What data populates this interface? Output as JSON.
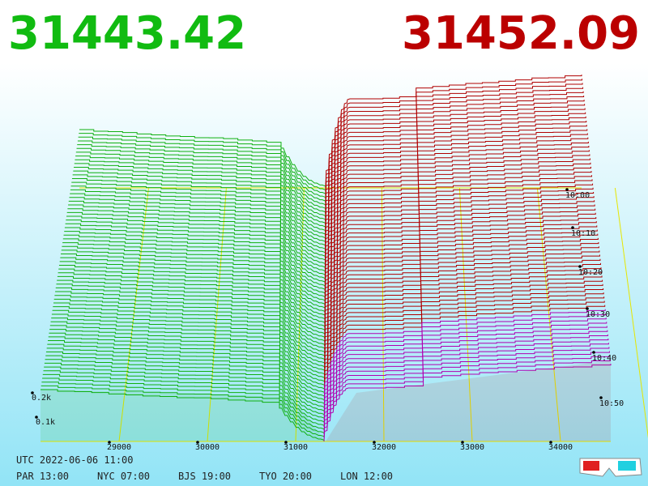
{
  "header": {
    "bid": "31443.42",
    "ask": "31452.09"
  },
  "price_axis": [
    "29000",
    "30000",
    "31000",
    "32000",
    "33000",
    "34000"
  ],
  "time_axis": [
    "10:00",
    "10:10",
    "10:20",
    "10:30",
    "10:40",
    "10:50"
  ],
  "depth_axis": [
    "0.2k",
    "0.1k"
  ],
  "clock": {
    "utc": "UTC 2022-06-06 11:00",
    "zones": [
      "PAR 13:00",
      "NYC 07:00",
      "BJS 19:00",
      "TYO 20:00",
      "LON 12:00"
    ]
  }
}
